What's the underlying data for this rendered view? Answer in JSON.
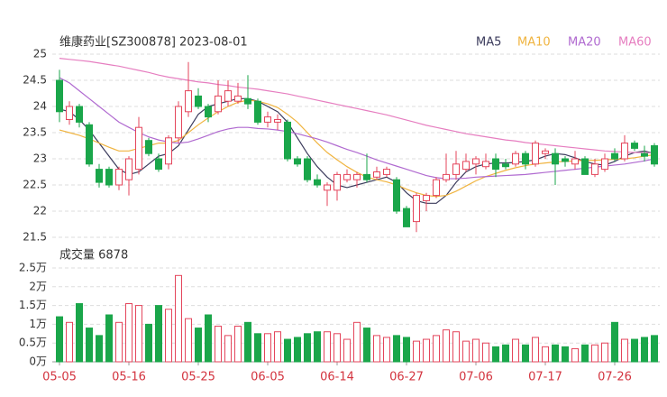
{
  "chart_data": [
    {
      "type": "candlestick",
      "title": "维康药业[SZ300878] 2023-08-01",
      "categories": [
        "05-05",
        null,
        null,
        null,
        null,
        null,
        null,
        "05-16",
        null,
        null,
        null,
        null,
        null,
        null,
        "05-25",
        null,
        null,
        null,
        null,
        null,
        null,
        "06-05",
        null,
        null,
        null,
        null,
        null,
        null,
        "06-14",
        null,
        null,
        null,
        null,
        null,
        null,
        "06-27",
        null,
        null,
        null,
        null,
        null,
        null,
        "07-06",
        null,
        null,
        null,
        null,
        null,
        null,
        "07-17",
        null,
        null,
        null,
        null,
        null,
        null,
        "07-26",
        null,
        null,
        null,
        null
      ],
      "open": [
        24.5,
        23.75,
        24.0,
        23.65,
        22.8,
        22.8,
        22.5,
        22.6,
        22.8,
        23.35,
        23.0,
        22.9,
        23.4,
        23.9,
        24.2,
        24.0,
        23.9,
        24.1,
        24.1,
        24.15,
        24.1,
        23.7,
        23.7,
        23.7,
        23.0,
        23.0,
        22.6,
        22.4,
        22.4,
        22.6,
        22.6,
        22.7,
        22.65,
        22.7,
        22.6,
        22.05,
        21.8,
        22.2,
        22.3,
        22.6,
        22.7,
        22.8,
        22.9,
        22.85,
        23.0,
        22.9,
        22.9,
        23.1,
        22.9,
        23.1,
        23.1,
        23.0,
        22.9,
        23.0,
        22.7,
        22.8,
        23.1,
        23.0,
        23.3,
        23.1,
        23.25
      ],
      "high": [
        24.7,
        24.1,
        24.05,
        23.7,
        22.9,
        22.85,
        22.85,
        23.05,
        23.8,
        23.4,
        23.1,
        23.45,
        24.1,
        24.85,
        24.35,
        24.05,
        24.5,
        24.5,
        24.45,
        24.6,
        24.15,
        23.9,
        23.85,
        23.75,
        23.05,
        23.05,
        22.7,
        22.55,
        22.75,
        22.8,
        22.75,
        23.1,
        22.85,
        22.85,
        22.65,
        22.1,
        22.35,
        22.35,
        22.65,
        23.1,
        23.15,
        23.1,
        23.05,
        23.1,
        23.1,
        23.0,
        23.15,
        23.15,
        23.35,
        23.2,
        23.2,
        23.05,
        23.15,
        23.05,
        23.0,
        23.1,
        23.2,
        23.45,
        23.35,
        23.25,
        23.3
      ],
      "low": [
        23.7,
        23.65,
        23.6,
        22.85,
        22.45,
        22.45,
        22.4,
        22.3,
        22.7,
        23.05,
        22.75,
        22.8,
        23.3,
        23.8,
        23.95,
        23.7,
        23.85,
        24.0,
        24.05,
        23.95,
        23.65,
        23.6,
        23.55,
        22.95,
        22.85,
        22.55,
        22.45,
        22.1,
        22.2,
        22.55,
        22.45,
        22.55,
        22.6,
        22.65,
        21.95,
        21.7,
        21.6,
        22.0,
        22.25,
        22.55,
        22.6,
        22.75,
        22.7,
        22.8,
        22.65,
        22.8,
        22.85,
        22.8,
        22.85,
        23.0,
        22.5,
        22.85,
        22.8,
        22.7,
        22.65,
        22.75,
        22.95,
        22.95,
        23.15,
        22.95,
        22.85
      ],
      "close": [
        23.9,
        24.0,
        23.7,
        22.9,
        22.55,
        22.5,
        22.8,
        23.0,
        23.6,
        23.1,
        22.8,
        23.4,
        24.0,
        24.3,
        24.0,
        23.8,
        24.2,
        24.3,
        24.2,
        24.05,
        23.7,
        23.8,
        23.75,
        23.0,
        22.9,
        22.6,
        22.5,
        22.5,
        22.7,
        22.7,
        22.7,
        22.6,
        22.75,
        22.8,
        22.0,
        21.7,
        22.3,
        22.3,
        22.6,
        22.7,
        22.9,
        22.95,
        23.0,
        22.95,
        22.8,
        22.85,
        23.1,
        22.9,
        23.3,
        23.15,
        22.9,
        22.95,
        23.0,
        22.7,
        22.9,
        23.0,
        23.0,
        23.3,
        23.2,
        23.05,
        22.9
      ],
      "up_color": "#e4455b",
      "down_color": "#1aa64a",
      "series": [
        {
          "name": "MA5",
          "color": "#3b3b5c",
          "values": [
            23.95,
            23.9,
            23.75,
            23.55,
            23.3,
            23.05,
            22.8,
            22.7,
            22.75,
            22.9,
            23.05,
            23.1,
            23.25,
            23.55,
            23.85,
            24.0,
            24.05,
            24.1,
            24.15,
            24.15,
            24.1,
            24.0,
            23.9,
            23.7,
            23.4,
            23.1,
            22.85,
            22.65,
            22.5,
            22.45,
            22.5,
            22.55,
            22.6,
            22.65,
            22.55,
            22.35,
            22.2,
            22.15,
            22.15,
            22.3,
            22.55,
            22.75,
            22.85,
            22.9,
            22.92,
            22.92,
            22.93,
            22.95,
            22.98,
            23.05,
            23.1,
            23.08,
            23.02,
            22.95,
            22.9,
            22.88,
            22.95,
            23.05,
            23.12,
            23.15,
            23.1
          ]
        },
        {
          "name": "MA10",
          "color": "#f0b440",
          "values": [
            23.55,
            23.5,
            23.45,
            23.38,
            23.3,
            23.22,
            23.15,
            23.15,
            23.2,
            23.25,
            23.3,
            23.3,
            23.35,
            23.5,
            23.65,
            23.78,
            23.9,
            24.0,
            24.08,
            24.12,
            24.1,
            24.05,
            23.98,
            23.85,
            23.7,
            23.5,
            23.3,
            23.12,
            22.98,
            22.85,
            22.74,
            22.65,
            22.6,
            22.56,
            22.5,
            22.42,
            22.35,
            22.3,
            22.28,
            22.3,
            22.38,
            22.48,
            22.58,
            22.66,
            22.72,
            22.78,
            22.83,
            22.87,
            22.9,
            22.92,
            22.94,
            22.95,
            22.96,
            22.97,
            22.97,
            22.98,
            22.99,
            23.0,
            23.02,
            23.05,
            23.08
          ]
        },
        {
          "name": "MA20",
          "color": "#b06ad0",
          "values": [
            24.55,
            24.45,
            24.3,
            24.15,
            24.0,
            23.85,
            23.7,
            23.6,
            23.5,
            23.42,
            23.36,
            23.32,
            23.3,
            23.32,
            23.38,
            23.45,
            23.52,
            23.57,
            23.6,
            23.6,
            23.58,
            23.57,
            23.55,
            23.52,
            23.48,
            23.43,
            23.38,
            23.32,
            23.25,
            23.18,
            23.12,
            23.05,
            22.98,
            22.92,
            22.86,
            22.8,
            22.74,
            22.68,
            22.64,
            22.62,
            22.62,
            22.63,
            22.65,
            22.66,
            22.67,
            22.68,
            22.69,
            22.7,
            22.72,
            22.74,
            22.76,
            22.78,
            22.8,
            22.82,
            22.84,
            22.86,
            22.88,
            22.9,
            22.93,
            22.96,
            23.0
          ]
        },
        {
          "name": "MA60",
          "color": "#e67ec0",
          "values": [
            24.92,
            24.9,
            24.88,
            24.86,
            24.83,
            24.8,
            24.77,
            24.73,
            24.69,
            24.65,
            24.6,
            24.56,
            24.53,
            24.5,
            24.47,
            24.45,
            24.42,
            24.4,
            24.37,
            24.35,
            24.33,
            24.3,
            24.27,
            24.24,
            24.2,
            24.16,
            24.12,
            24.08,
            24.04,
            24.0,
            23.96,
            23.92,
            23.88,
            23.84,
            23.79,
            23.74,
            23.69,
            23.64,
            23.6,
            23.56,
            23.52,
            23.48,
            23.45,
            23.42,
            23.39,
            23.36,
            23.34,
            23.31,
            23.29,
            23.27,
            23.25,
            23.23,
            23.21,
            23.19,
            23.17,
            23.15,
            23.14,
            23.13,
            23.12,
            23.12,
            23.11
          ]
        }
      ],
      "ylim": [
        21.5,
        25
      ],
      "yticks": [
        21.5,
        22,
        22.5,
        23,
        23.5,
        24,
        24.5,
        25
      ],
      "grid": true
    },
    {
      "type": "bar",
      "title": "成交量 6878",
      "values": [
        1.2,
        1.05,
        1.55,
        0.9,
        0.7,
        1.25,
        1.05,
        1.55,
        1.5,
        1.0,
        1.5,
        1.4,
        2.3,
        1.15,
        0.9,
        1.25,
        0.95,
        0.7,
        0.95,
        1.05,
        0.75,
        0.75,
        0.8,
        0.6,
        0.65,
        0.75,
        0.8,
        0.8,
        0.75,
        0.6,
        1.05,
        0.9,
        0.7,
        0.65,
        0.7,
        0.65,
        0.55,
        0.6,
        0.7,
        0.85,
        0.8,
        0.55,
        0.6,
        0.5,
        0.4,
        0.45,
        0.6,
        0.45,
        0.65,
        0.4,
        0.45,
        0.4,
        0.35,
        0.45,
        0.45,
        0.5,
        1.05,
        0.6,
        0.6,
        0.65,
        0.7
      ],
      "ylim": [
        0,
        2.5
      ],
      "yticks": [
        {
          "value": 0,
          "label": "0万"
        },
        {
          "value": 0.5,
          "label": "0.5万"
        },
        {
          "value": 1,
          "label": "1万"
        },
        {
          "value": 1.5,
          "label": "1.5万"
        },
        {
          "value": 2,
          "label": "2万"
        },
        {
          "value": 2.5,
          "label": "2.5万"
        }
      ],
      "grid": true
    }
  ]
}
